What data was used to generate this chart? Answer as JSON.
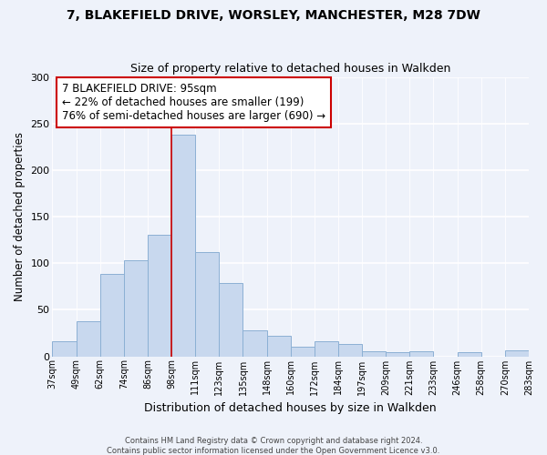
{
  "title_line1": "7, BLAKEFIELD DRIVE, WORSLEY, MANCHESTER, M28 7DW",
  "title_line2": "Size of property relative to detached houses in Walkden",
  "xlabel": "Distribution of detached houses by size in Walkden",
  "ylabel": "Number of detached properties",
  "bar_color": "#c8d8ee",
  "bar_edge_color": "#8cb0d4",
  "categories": [
    "37sqm",
    "49sqm",
    "62sqm",
    "74sqm",
    "86sqm",
    "98sqm",
    "111sqm",
    "123sqm",
    "135sqm",
    "148sqm",
    "160sqm",
    "172sqm",
    "184sqm",
    "197sqm",
    "209sqm",
    "221sqm",
    "233sqm",
    "246sqm",
    "258sqm",
    "270sqm",
    "283sqm"
  ],
  "values": [
    16,
    38,
    88,
    103,
    130,
    238,
    112,
    79,
    28,
    22,
    10,
    16,
    13,
    5,
    4,
    5,
    0,
    4,
    0,
    6
  ],
  "ylim": [
    0,
    300
  ],
  "yticks": [
    0,
    50,
    100,
    150,
    200,
    250,
    300
  ],
  "vline_x": 5.0,
  "annotation_text": "7 BLAKEFIELD DRIVE: 95sqm\n← 22% of detached houses are smaller (199)\n76% of semi-detached houses are larger (690) →",
  "annotation_box_color": "white",
  "annotation_box_edge": "#cc0000",
  "vline_color": "#cc0000",
  "footer_line1": "Contains HM Land Registry data © Crown copyright and database right 2024.",
  "footer_line2": "Contains public sector information licensed under the Open Government Licence v3.0.",
  "background_color": "#eef2fa",
  "grid_color": "#d0d8e8"
}
